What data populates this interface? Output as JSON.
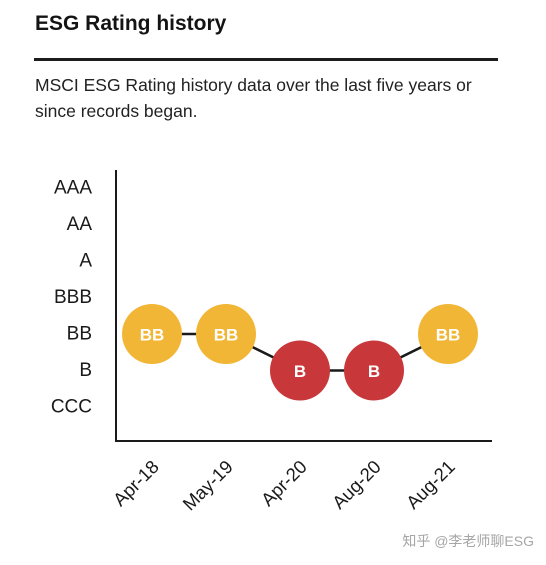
{
  "header": {
    "title": "ESG Rating history",
    "description": "MSCI ESG Rating history data over the last five years or since records began."
  },
  "chart_data": {
    "type": "line",
    "title": "",
    "xlabel": "",
    "ylabel": "",
    "y_categories": [
      "AAA",
      "AA",
      "A",
      "BBB",
      "BB",
      "B",
      "CCC"
    ],
    "categories": [
      "Apr-18",
      "May-19",
      "Apr-20",
      "Aug-20",
      "Aug-21"
    ],
    "values": [
      "BB",
      "BB",
      "B",
      "B",
      "BB"
    ],
    "marker_labels": [
      "BB",
      "BB",
      "B",
      "B",
      "BB"
    ],
    "colors": {
      "BB": "#F2B636",
      "B": "#C8383A",
      "line": "#1a1a1a",
      "axis": "#1a1a1a"
    },
    "grid": false,
    "legend": "none"
  },
  "watermark": "知乎 @李老师聊ESG"
}
